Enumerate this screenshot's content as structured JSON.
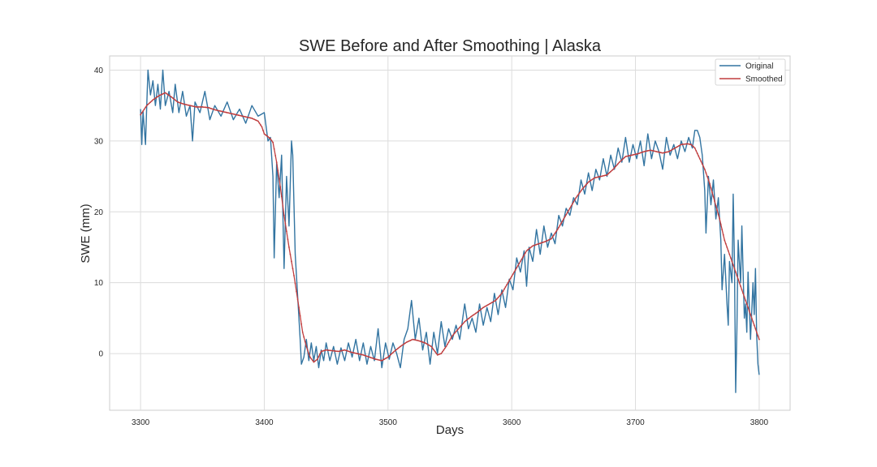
{
  "chart_data": {
    "type": "line",
    "title": "SWE Before and After Smoothing | Alaska",
    "xlabel": "Days",
    "ylabel": "SWE (mm)",
    "xlim": [
      3275,
      3825
    ],
    "ylim": [
      -8,
      42
    ],
    "xticks": [
      3300,
      3400,
      3500,
      3600,
      3700,
      3800
    ],
    "yticks": [
      0,
      10,
      20,
      30,
      40
    ],
    "grid": true,
    "legend_position": "top-right",
    "colors": {
      "Original": "#3274a1",
      "Smoothed": "#c03d3e"
    },
    "series": [
      {
        "name": "Original",
        "anchors": [
          [
            3300,
            34.5
          ],
          [
            3301,
            29.5
          ],
          [
            3302,
            34.2
          ],
          [
            3304,
            29.5
          ],
          [
            3305,
            35.0
          ],
          [
            3306,
            40.0
          ],
          [
            3308,
            36.5
          ],
          [
            3310,
            38.5
          ],
          [
            3312,
            35.0
          ],
          [
            3314,
            38.0
          ],
          [
            3316,
            34.5
          ],
          [
            3318,
            40.0
          ],
          [
            3320,
            35.0
          ],
          [
            3323,
            37.0
          ],
          [
            3326,
            34.0
          ],
          [
            3328,
            38.0
          ],
          [
            3331,
            34.0
          ],
          [
            3334,
            37.0
          ],
          [
            3337,
            33.5
          ],
          [
            3340,
            35.0
          ],
          [
            3342,
            30.0
          ],
          [
            3344,
            35.5
          ],
          [
            3348,
            34.0
          ],
          [
            3352,
            37.0
          ],
          [
            3356,
            33.0
          ],
          [
            3360,
            35.0
          ],
          [
            3365,
            33.5
          ],
          [
            3370,
            35.5
          ],
          [
            3375,
            33.0
          ],
          [
            3380,
            34.5
          ],
          [
            3385,
            32.5
          ],
          [
            3390,
            35.0
          ],
          [
            3395,
            33.5
          ],
          [
            3400,
            34.0
          ],
          [
            3403,
            30.0
          ],
          [
            3405,
            30.5
          ],
          [
            3407,
            25.0
          ],
          [
            3408,
            13.5
          ],
          [
            3410,
            27.0
          ],
          [
            3412,
            22.0
          ],
          [
            3414,
            28.0
          ],
          [
            3416,
            12.0
          ],
          [
            3418,
            25.0
          ],
          [
            3420,
            18.0
          ],
          [
            3422,
            30.0
          ],
          [
            3423,
            28.0
          ],
          [
            3424,
            21.0
          ],
          [
            3425,
            14.0
          ],
          [
            3427,
            8.0
          ],
          [
            3429,
            2.0
          ],
          [
            3430,
            -1.5
          ],
          [
            3432,
            -0.5
          ],
          [
            3434,
            2.0
          ],
          [
            3436,
            -1.0
          ],
          [
            3438,
            1.5
          ],
          [
            3440,
            -1.0
          ],
          [
            3442,
            1.0
          ],
          [
            3444,
            -2.0
          ],
          [
            3446,
            0.5
          ],
          [
            3448,
            -1.0
          ],
          [
            3450,
            1.5
          ],
          [
            3453,
            -1.0
          ],
          [
            3456,
            1.0
          ],
          [
            3459,
            -1.5
          ],
          [
            3462,
            0.8
          ],
          [
            3465,
            -1.0
          ],
          [
            3468,
            1.5
          ],
          [
            3471,
            -0.5
          ],
          [
            3474,
            2.0
          ],
          [
            3477,
            -1.0
          ],
          [
            3480,
            1.5
          ],
          [
            3483,
            -1.5
          ],
          [
            3486,
            1.0
          ],
          [
            3489,
            -1.0
          ],
          [
            3492,
            3.5
          ],
          [
            3495,
            -2.0
          ],
          [
            3498,
            1.5
          ],
          [
            3501,
            -0.8
          ],
          [
            3504,
            1.5
          ],
          [
            3507,
            0.0
          ],
          [
            3510,
            -2.0
          ],
          [
            3513,
            2.0
          ],
          [
            3516,
            3.5
          ],
          [
            3519,
            7.5
          ],
          [
            3522,
            2.0
          ],
          [
            3525,
            5.0
          ],
          [
            3528,
            0.5
          ],
          [
            3531,
            3.0
          ],
          [
            3534,
            -1.5
          ],
          [
            3537,
            3.0
          ],
          [
            3540,
            0.0
          ],
          [
            3543,
            4.5
          ],
          [
            3546,
            1.0
          ],
          [
            3549,
            3.5
          ],
          [
            3552,
            2.0
          ],
          [
            3555,
            4.0
          ],
          [
            3558,
            2.0
          ],
          [
            3562,
            7.0
          ],
          [
            3565,
            3.5
          ],
          [
            3568,
            5.0
          ],
          [
            3571,
            3.0
          ],
          [
            3574,
            7.0
          ],
          [
            3577,
            4.0
          ],
          [
            3580,
            6.5
          ],
          [
            3583,
            4.5
          ],
          [
            3586,
            8.5
          ],
          [
            3589,
            5.5
          ],
          [
            3592,
            9.0
          ],
          [
            3595,
            6.5
          ],
          [
            3598,
            10.5
          ],
          [
            3601,
            9.0
          ],
          [
            3604,
            13.5
          ],
          [
            3607,
            11.5
          ],
          [
            3610,
            14.5
          ],
          [
            3612,
            9.5
          ],
          [
            3614,
            15.0
          ],
          [
            3617,
            13.0
          ],
          [
            3620,
            17.5
          ],
          [
            3623,
            14.0
          ],
          [
            3626,
            18.0
          ],
          [
            3629,
            15.0
          ],
          [
            3632,
            17.0
          ],
          [
            3635,
            15.5
          ],
          [
            3638,
            19.5
          ],
          [
            3641,
            18.0
          ],
          [
            3644,
            20.5
          ],
          [
            3647,
            19.5
          ],
          [
            3650,
            22.0
          ],
          [
            3653,
            21.0
          ],
          [
            3656,
            24.5
          ],
          [
            3659,
            22.5
          ],
          [
            3662,
            25.5
          ],
          [
            3665,
            23.0
          ],
          [
            3668,
            26.0
          ],
          [
            3671,
            24.5
          ],
          [
            3674,
            27.5
          ],
          [
            3677,
            25.0
          ],
          [
            3680,
            28.0
          ],
          [
            3683,
            26.0
          ],
          [
            3686,
            29.0
          ],
          [
            3689,
            27.0
          ],
          [
            3692,
            30.5
          ],
          [
            3695,
            27.0
          ],
          [
            3698,
            29.5
          ],
          [
            3701,
            27.5
          ],
          [
            3704,
            30.0
          ],
          [
            3707,
            26.5
          ],
          [
            3710,
            31.0
          ],
          [
            3713,
            27.5
          ],
          [
            3716,
            30.0
          ],
          [
            3719,
            28.5
          ],
          [
            3722,
            26.0
          ],
          [
            3725,
            30.5
          ],
          [
            3728,
            28.0
          ],
          [
            3731,
            29.5
          ],
          [
            3734,
            27.5
          ],
          [
            3737,
            30.0
          ],
          [
            3740,
            28.5
          ],
          [
            3743,
            30.5
          ],
          [
            3746,
            29.0
          ],
          [
            3748,
            31.5
          ],
          [
            3750,
            31.5
          ],
          [
            3752,
            30.5
          ],
          [
            3754,
            28.0
          ],
          [
            3756,
            23.0
          ],
          [
            3757,
            17.0
          ],
          [
            3759,
            25.0
          ],
          [
            3761,
            21.0
          ],
          [
            3763,
            24.5
          ],
          [
            3765,
            19.0
          ],
          [
            3767,
            22.0
          ],
          [
            3769,
            16.0
          ],
          [
            3770,
            9.0
          ],
          [
            3772,
            14.0
          ],
          [
            3774,
            7.0
          ],
          [
            3775,
            4.0
          ],
          [
            3776,
            13.0
          ],
          [
            3778,
            10.0
          ],
          [
            3779,
            22.5
          ],
          [
            3780,
            13.0
          ],
          [
            3781,
            -5.5
          ],
          [
            3782,
            3.5
          ],
          [
            3783,
            16.0
          ],
          [
            3785,
            10.0
          ],
          [
            3786,
            18.0
          ],
          [
            3788,
            5.0
          ],
          [
            3789,
            7.0
          ],
          [
            3790,
            3.0
          ],
          [
            3791,
            11.5
          ],
          [
            3793,
            2.0
          ],
          [
            3795,
            10.0
          ],
          [
            3796,
            5.5
          ],
          [
            3797,
            12.0
          ],
          [
            3798,
            2.5
          ],
          [
            3799,
            -1.5
          ],
          [
            3800,
            -3.0
          ]
        ]
      },
      {
        "name": "Smoothed",
        "anchors": [
          [
            3300,
            33.7
          ],
          [
            3305,
            35.0
          ],
          [
            3310,
            35.8
          ],
          [
            3315,
            36.4
          ],
          [
            3320,
            36.8
          ],
          [
            3325,
            36.2
          ],
          [
            3330,
            35.5
          ],
          [
            3335,
            35.2
          ],
          [
            3340,
            35.0
          ],
          [
            3345,
            34.8
          ],
          [
            3350,
            34.8
          ],
          [
            3355,
            34.7
          ],
          [
            3360,
            34.4
          ],
          [
            3365,
            34.2
          ],
          [
            3370,
            34.0
          ],
          [
            3375,
            33.8
          ],
          [
            3380,
            33.6
          ],
          [
            3385,
            33.4
          ],
          [
            3390,
            33.2
          ],
          [
            3395,
            32.8
          ],
          [
            3398,
            32.0
          ],
          [
            3400,
            31.0
          ],
          [
            3403,
            30.6
          ],
          [
            3405,
            30.3
          ],
          [
            3407,
            29.8
          ],
          [
            3410,
            27.0
          ],
          [
            3413,
            23.5
          ],
          [
            3416,
            19.5
          ],
          [
            3420,
            15.0
          ],
          [
            3424,
            11.0
          ],
          [
            3428,
            6.5
          ],
          [
            3431,
            3.0
          ],
          [
            3434,
            1.0
          ],
          [
            3437,
            -0.5
          ],
          [
            3440,
            -1.2
          ],
          [
            3443,
            -0.8
          ],
          [
            3446,
            0.3
          ],
          [
            3450,
            0.5
          ],
          [
            3455,
            0.4
          ],
          [
            3460,
            0.3
          ],
          [
            3465,
            0.5
          ],
          [
            3470,
            0.2
          ],
          [
            3475,
            0.0
          ],
          [
            3480,
            -0.2
          ],
          [
            3485,
            -0.5
          ],
          [
            3490,
            -0.8
          ],
          [
            3495,
            -1.0
          ],
          [
            3500,
            -0.5
          ],
          [
            3505,
            0.3
          ],
          [
            3510,
            1.0
          ],
          [
            3515,
            1.6
          ],
          [
            3520,
            2.0
          ],
          [
            3525,
            1.8
          ],
          [
            3530,
            1.5
          ],
          [
            3535,
            1.0
          ],
          [
            3540,
            -0.2
          ],
          [
            3543,
            0.0
          ],
          [
            3547,
            1.0
          ],
          [
            3552,
            2.5
          ],
          [
            3557,
            3.5
          ],
          [
            3562,
            4.5
          ],
          [
            3567,
            5.2
          ],
          [
            3572,
            5.8
          ],
          [
            3577,
            6.5
          ],
          [
            3582,
            7.0
          ],
          [
            3587,
            7.5
          ],
          [
            3592,
            8.5
          ],
          [
            3597,
            10.0
          ],
          [
            3602,
            11.5
          ],
          [
            3607,
            13.0
          ],
          [
            3612,
            14.5
          ],
          [
            3617,
            15.2
          ],
          [
            3622,
            15.5
          ],
          [
            3627,
            15.8
          ],
          [
            3632,
            16.2
          ],
          [
            3637,
            17.5
          ],
          [
            3642,
            19.0
          ],
          [
            3647,
            20.5
          ],
          [
            3652,
            22.0
          ],
          [
            3657,
            23.2
          ],
          [
            3662,
            24.2
          ],
          [
            3667,
            24.8
          ],
          [
            3672,
            25.0
          ],
          [
            3677,
            25.2
          ],
          [
            3682,
            26.0
          ],
          [
            3687,
            27.0
          ],
          [
            3692,
            27.8
          ],
          [
            3697,
            28.0
          ],
          [
            3702,
            28.2
          ],
          [
            3707,
            28.5
          ],
          [
            3712,
            28.7
          ],
          [
            3717,
            28.5
          ],
          [
            3722,
            28.3
          ],
          [
            3727,
            28.5
          ],
          [
            3732,
            29.0
          ],
          [
            3737,
            29.5
          ],
          [
            3742,
            29.6
          ],
          [
            3745,
            29.5
          ],
          [
            3748,
            29.0
          ],
          [
            3752,
            27.5
          ],
          [
            3756,
            26.0
          ],
          [
            3760,
            24.0
          ],
          [
            3764,
            21.5
          ],
          [
            3768,
            19.0
          ],
          [
            3772,
            16.0
          ],
          [
            3776,
            14.0
          ],
          [
            3780,
            12.0
          ],
          [
            3784,
            10.0
          ],
          [
            3788,
            8.0
          ],
          [
            3792,
            6.0
          ],
          [
            3796,
            4.0
          ],
          [
            3800,
            2.0
          ]
        ]
      }
    ]
  }
}
